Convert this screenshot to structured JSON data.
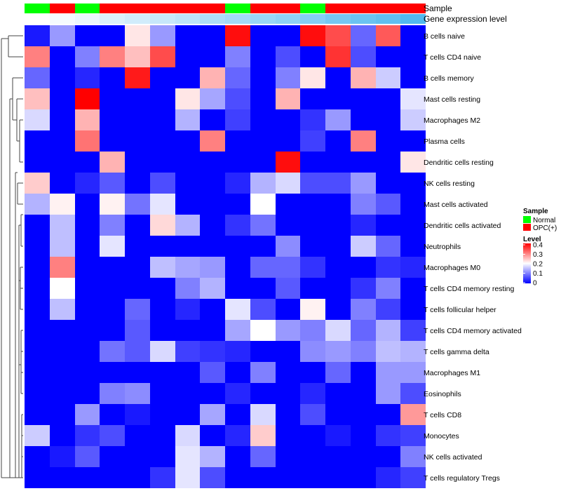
{
  "chart_data": {
    "type": "heatmap",
    "colorscale": {
      "stops": [
        {
          "value": 0,
          "color": "#0000FF"
        },
        {
          "value": 0.2,
          "color": "#FFFFFF"
        },
        {
          "value": 0.4,
          "color": "#FF0000"
        }
      ]
    },
    "annotations": [
      {
        "name": "Sample",
        "values": [
          "Normal",
          "OPC(+)",
          "Normal",
          "OPC(+)",
          "OPC(+)",
          "OPC(+)",
          "OPC(+)",
          "OPC(+)",
          "Normal",
          "OPC(+)",
          "OPC(+)",
          "Normal",
          "OPC(+)",
          "OPC(+)",
          "OPC(+)",
          "OPC(+)"
        ],
        "colors": {
          "Normal": "#00FF00",
          "OPC(+)": "#FF0000"
        }
      },
      {
        "name": "Gene expression level",
        "values": [
          0,
          0.02,
          0.04,
          0.07,
          0.09,
          0.11,
          0.13,
          0.16,
          0.18,
          0.2,
          0.22,
          0.24,
          0.27,
          0.29,
          0.31,
          0.34
        ],
        "colors": {
          "low": "#FFFFFF",
          "high": "#52B9EF"
        }
      }
    ],
    "rows": [
      {
        "label": "B cells naive",
        "values": [
          0.02,
          0.12,
          0.0,
          0.0,
          0.22,
          0.12,
          0.0,
          0.0,
          0.39,
          0.0,
          0.0,
          0.39,
          0.34,
          0.08,
          0.33,
          0.0
        ]
      },
      {
        "label": "T cells CD4 naive",
        "values": [
          0.3,
          0.0,
          0.1,
          0.3,
          0.25,
          0.34,
          0.0,
          0.0,
          0.1,
          0.0,
          0.06,
          0.0,
          0.36,
          0.06,
          0.0,
          0.0
        ]
      },
      {
        "label": "B cells memory",
        "values": [
          0.08,
          0.0,
          0.03,
          0.0,
          0.38,
          0.0,
          0.0,
          0.26,
          0.08,
          0.0,
          0.1,
          0.22,
          0.0,
          0.26,
          0.16,
          0.0
        ]
      },
      {
        "label": "Mast cells resting",
        "values": [
          0.25,
          0.0,
          0.4,
          0.0,
          0.0,
          0.0,
          0.22,
          0.13,
          0.06,
          0.0,
          0.26,
          0.0,
          0.0,
          0.0,
          0.0,
          0.18
        ]
      },
      {
        "label": "Macrophages M2",
        "values": [
          0.17,
          0.0,
          0.26,
          0.0,
          0.0,
          0.0,
          0.14,
          0.0,
          0.05,
          0.0,
          0.0,
          0.04,
          0.12,
          0.0,
          0.0,
          0.16
        ]
      },
      {
        "label": "Plasma cells",
        "values": [
          0.0,
          0.0,
          0.31,
          0.0,
          0.0,
          0.0,
          0.0,
          0.3,
          0.0,
          0.0,
          0.0,
          0.05,
          0.0,
          0.3,
          0.0,
          0.0
        ]
      },
      {
        "label": "Dendritic cells resting",
        "values": [
          0.0,
          0.0,
          0.0,
          0.26,
          0.0,
          0.0,
          0.0,
          0.0,
          0.0,
          0.0,
          0.39,
          0.0,
          0.0,
          0.0,
          0.0,
          0.22
        ]
      },
      {
        "label": "NK cells resting",
        "values": [
          0.24,
          0.0,
          0.03,
          0.07,
          0.0,
          0.06,
          0.0,
          0.0,
          0.03,
          0.14,
          0.17,
          0.06,
          0.06,
          0.12,
          0.0,
          0.0
        ]
      },
      {
        "label": "Mast cells activated",
        "values": [
          0.14,
          0.21,
          0.0,
          0.21,
          0.09,
          0.18,
          0.0,
          0.0,
          0.0,
          0.2,
          0.0,
          0.0,
          0.0,
          0.1,
          0.07,
          0.0
        ]
      },
      {
        "label": "Dendritic cells activated",
        "values": [
          0.0,
          0.15,
          0.0,
          0.1,
          0.0,
          0.23,
          0.14,
          0.0,
          0.04,
          0.09,
          0.0,
          0.0,
          0.0,
          0.03,
          0.0,
          0.0
        ]
      },
      {
        "label": "Neutrophils",
        "values": [
          0.0,
          0.15,
          0.0,
          0.18,
          0.0,
          0.0,
          0.0,
          0.0,
          0.0,
          0.0,
          0.11,
          0.0,
          0.0,
          0.16,
          0.08,
          0.0
        ]
      },
      {
        "label": "Macrophages M0",
        "values": [
          0.0,
          0.3,
          0.0,
          0.0,
          0.0,
          0.15,
          0.13,
          0.12,
          0.0,
          0.08,
          0.08,
          0.04,
          0.0,
          0.0,
          0.04,
          0.03
        ]
      },
      {
        "label": "T cells CD4 memory resting",
        "values": [
          0.0,
          0.2,
          0.0,
          0.0,
          0.0,
          0.0,
          0.1,
          0.14,
          0.0,
          0.0,
          0.07,
          0.0,
          0.0,
          0.04,
          0.1,
          0.0
        ]
      },
      {
        "label": "T cells follicular helper",
        "values": [
          0.0,
          0.15,
          0.0,
          0.0,
          0.08,
          0.0,
          0.03,
          0.0,
          0.18,
          0.06,
          0.0,
          0.21,
          0.0,
          0.1,
          0.05,
          0.0
        ]
      },
      {
        "label": "T cells CD4 memory activated",
        "values": [
          0.0,
          0.0,
          0.0,
          0.0,
          0.07,
          0.0,
          0.0,
          0.0,
          0.13,
          0.2,
          0.12,
          0.1,
          0.17,
          0.08,
          0.14,
          0.05
        ]
      },
      {
        "label": "T cells gamma delta",
        "values": [
          0.0,
          0.0,
          0.0,
          0.09,
          0.07,
          0.17,
          0.05,
          0.04,
          0.03,
          0.0,
          0.0,
          0.11,
          0.12,
          0.1,
          0.15,
          0.14
        ]
      },
      {
        "label": "Macrophages M1",
        "values": [
          0.0,
          0.0,
          0.0,
          0.0,
          0.0,
          0.0,
          0.0,
          0.07,
          0.0,
          0.1,
          0.0,
          0.0,
          0.08,
          0.0,
          0.12,
          0.12
        ]
      },
      {
        "label": "Eosinophils",
        "values": [
          0.0,
          0.0,
          0.0,
          0.1,
          0.11,
          0.0,
          0.0,
          0.0,
          0.03,
          0.0,
          0.0,
          0.03,
          0.0,
          0.0,
          0.12,
          0.06
        ]
      },
      {
        "label": "T cells CD8",
        "values": [
          0.0,
          0.0,
          0.12,
          0.0,
          0.02,
          0.0,
          0.0,
          0.13,
          0.0,
          0.17,
          0.0,
          0.06,
          0.0,
          0.0,
          0.0,
          0.28
        ]
      },
      {
        "label": "Monocytes",
        "values": [
          0.16,
          0.0,
          0.04,
          0.06,
          0.0,
          0.0,
          0.17,
          0.0,
          0.03,
          0.24,
          0.0,
          0.0,
          0.02,
          0.0,
          0.04,
          0.05
        ]
      },
      {
        "label": "NK cells activated",
        "values": [
          0.0,
          0.02,
          0.07,
          0.0,
          0.0,
          0.0,
          0.18,
          0.14,
          0.0,
          0.08,
          0.0,
          0.0,
          0.0,
          0.0,
          0.0,
          0.1
        ]
      },
      {
        "label": "T cells regulatory  Tregs",
        "values": [
          0.0,
          0.0,
          0.0,
          0.0,
          0.0,
          0.04,
          0.18,
          0.06,
          0.0,
          0.0,
          0.0,
          0.0,
          0.0,
          0.0,
          0.03,
          0.05
        ]
      }
    ],
    "legends": {
      "sample": {
        "title": "Sample",
        "items": [
          {
            "label": "Normal",
            "color": "#00FF00"
          },
          {
            "label": "OPC(+)",
            "color": "#FF0000"
          }
        ]
      },
      "level": {
        "title": "Level",
        "ticks": [
          "0.4",
          "0.3",
          "0.2",
          "0.1",
          "0"
        ],
        "range": [
          0,
          0.4
        ]
      }
    }
  }
}
